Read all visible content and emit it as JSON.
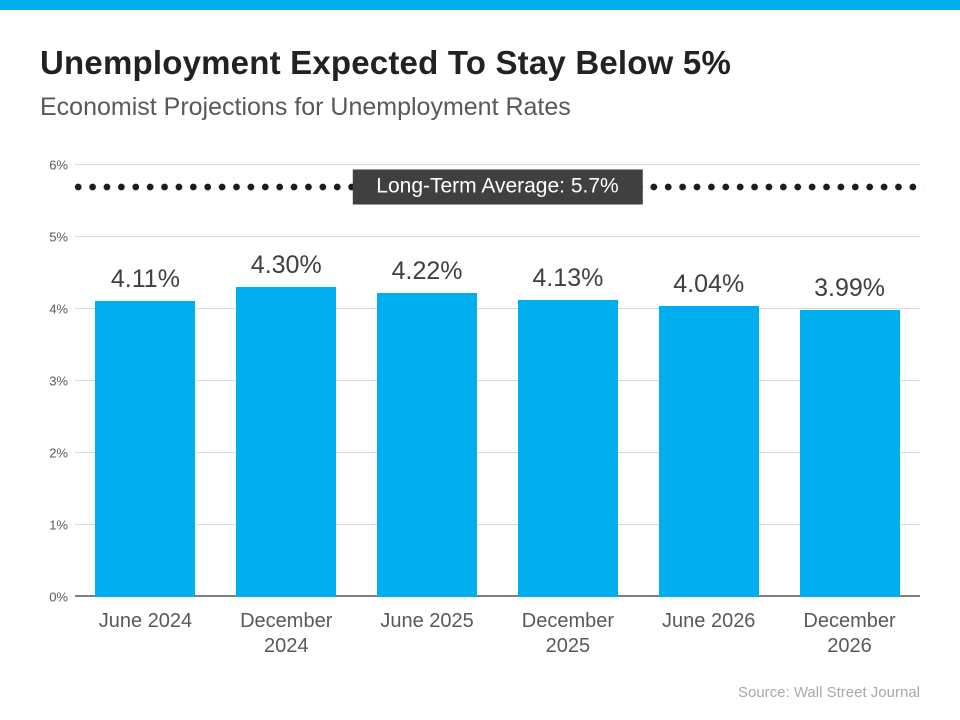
{
  "accent_color": "#00AEEF",
  "source": "Source: Wall Street Journal",
  "chart_data": {
    "type": "bar",
    "title": "Unemployment Expected To Stay Below 5%",
    "subtitle": "Economist Projections for Unemployment Rates",
    "categories": [
      "June 2024",
      "December 2024",
      "June 2025",
      "December 2025",
      "June 2026",
      "December 2026"
    ],
    "values": [
      4.11,
      4.3,
      4.22,
      4.13,
      4.04,
      3.99
    ],
    "value_labels": [
      "4.11%",
      "4.30%",
      "4.22%",
      "4.13%",
      "4.04%",
      "3.99%"
    ],
    "ylim": [
      0,
      6
    ],
    "yticks": [
      "0%",
      "1%",
      "2%",
      "3%",
      "4%",
      "5%",
      "6%"
    ],
    "grid": true,
    "legend": "none",
    "bar_color": "#00AEEF",
    "reference_line": {
      "value": 5.7,
      "label": "Long-Term Average: 5.7%",
      "style": "dotted",
      "dot_color": "#1c1c1c",
      "label_bg": "#404040",
      "label_color": "#ffffff"
    }
  }
}
